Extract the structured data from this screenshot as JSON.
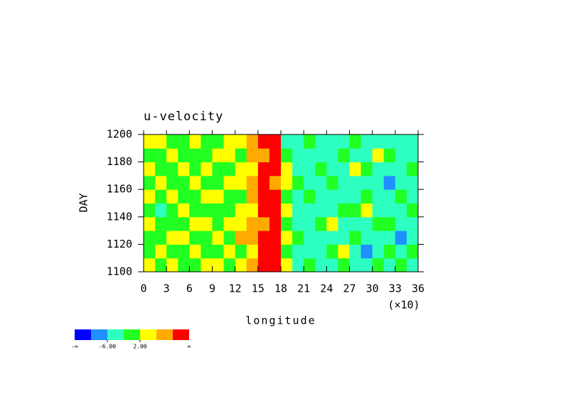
{
  "chart_data": {
    "type": "heatmap",
    "title": "u-velocity",
    "xlabel": "longitude",
    "ylabel": "DAY",
    "x_multiplier": "(×10)",
    "xlim": [
      0,
      36
    ],
    "ylim": [
      1100,
      1200
    ],
    "xticks": [
      0,
      3,
      6,
      9,
      12,
      15,
      18,
      21,
      24,
      27,
      30,
      33,
      36
    ],
    "yticks": [
      1100,
      1120,
      1140,
      1160,
      1180,
      1200
    ],
    "xbins": [
      0,
      1.5,
      3,
      4.5,
      6,
      7.5,
      9,
      10.5,
      12,
      13.5,
      15,
      16.5,
      18,
      19.5,
      21,
      22.5,
      24,
      25.5,
      27,
      28.5,
      30,
      31.5,
      33,
      34.5,
      36
    ],
    "ybins": [
      1100,
      1110,
      1120,
      1130,
      1140,
      1150,
      1160,
      1170,
      1180,
      1190,
      1200
    ],
    "z": [
      [
        4,
        0,
        4,
        0,
        0,
        4,
        4,
        0,
        4,
        8,
        12,
        12,
        4,
        -4,
        0,
        -4,
        -4,
        0,
        -4,
        -4,
        0,
        -4,
        0,
        -4
      ],
      [
        0,
        4,
        0,
        0,
        4,
        0,
        0,
        4,
        0,
        4,
        12,
        12,
        0,
        -4,
        -4,
        -4,
        0,
        4,
        -4,
        -8,
        -4,
        0,
        -4,
        0
      ],
      [
        0,
        0,
        4,
        4,
        0,
        0,
        4,
        0,
        8,
        8,
        12,
        12,
        4,
        0,
        -4,
        -4,
        -4,
        -4,
        0,
        -4,
        -4,
        -4,
        -8,
        -4
      ],
      [
        4,
        0,
        0,
        0,
        4,
        4,
        0,
        4,
        4,
        8,
        8,
        12,
        0,
        -4,
        -4,
        0,
        4,
        -4,
        -4,
        -4,
        0,
        0,
        -4,
        -4
      ],
      [
        0,
        -4,
        0,
        4,
        0,
        0,
        0,
        0,
        4,
        4,
        12,
        12,
        4,
        -4,
        -4,
        -4,
        -4,
        0,
        0,
        4,
        -4,
        -4,
        -4,
        0
      ],
      [
        4,
        0,
        4,
        0,
        0,
        4,
        4,
        0,
        0,
        8,
        12,
        12,
        0,
        -4,
        0,
        -4,
        -4,
        -4,
        -4,
        0,
        -4,
        -4,
        0,
        -4
      ],
      [
        0,
        4,
        0,
        0,
        4,
        0,
        0,
        4,
        4,
        8,
        12,
        8,
        4,
        0,
        -4,
        -4,
        0,
        -4,
        -4,
        -4,
        -4,
        -8,
        -4,
        -4
      ],
      [
        4,
        0,
        0,
        4,
        0,
        4,
        0,
        0,
        4,
        4,
        12,
        12,
        4,
        -4,
        -4,
        0,
        -4,
        -4,
        4,
        0,
        -4,
        -4,
        -4,
        0
      ],
      [
        0,
        0,
        4,
        0,
        0,
        0,
        4,
        4,
        0,
        8,
        8,
        12,
        0,
        -4,
        -4,
        -4,
        -4,
        0,
        -4,
        -4,
        4,
        0,
        -4,
        -4
      ],
      [
        4,
        4,
        0,
        0,
        4,
        0,
        0,
        4,
        4,
        8,
        12,
        12,
        -4,
        -4,
        0,
        -4,
        -4,
        -4,
        0,
        -4,
        -4,
        -4,
        -4,
        -4
      ]
    ],
    "levels": [
      -10,
      -6,
      -2,
      2,
      6,
      10
    ],
    "colors": [
      "#0000ff",
      "#1e90ff",
      "#2dffc0",
      "#22ff22",
      "#ffff00",
      "#ffaa00",
      "#ff0000"
    ],
    "colorbar_ticks": [
      {
        "value": -6,
        "label": "-6.00"
      },
      {
        "value": 2,
        "label": "2.00"
      }
    ],
    "colorbar_ends": [
      "-∞",
      "∞"
    ]
  }
}
